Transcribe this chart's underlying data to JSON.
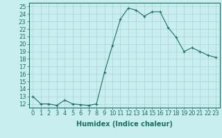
{
  "x": [
    0,
    1,
    2,
    3,
    4,
    5,
    6,
    7,
    8,
    9,
    10,
    11,
    12,
    13,
    14,
    15,
    16,
    17,
    18,
    19,
    20,
    21,
    22,
    23
  ],
  "y": [
    13.0,
    12.0,
    12.0,
    11.8,
    12.5,
    12.0,
    11.9,
    11.8,
    12.0,
    16.2,
    19.8,
    23.3,
    24.8,
    24.5,
    23.7,
    24.3,
    24.3,
    22.2,
    20.9,
    19.0,
    19.5,
    19.0,
    18.5,
    18.2
  ],
  "line_color": "#1a7060",
  "marker": "+",
  "marker_size": 3,
  "background_color": "#c8eef0",
  "grid_color": "#aad4d8",
  "tick_color": "#1a7060",
  "xlabel": "Humidex (Indice chaleur)",
  "xlim": [
    -0.5,
    23.5
  ],
  "ylim": [
    11.5,
    25.5
  ],
  "yticks": [
    12,
    13,
    14,
    15,
    16,
    17,
    18,
    19,
    20,
    21,
    22,
    23,
    24,
    25
  ],
  "xticks": [
    0,
    1,
    2,
    3,
    4,
    5,
    6,
    7,
    8,
    9,
    10,
    11,
    12,
    13,
    14,
    15,
    16,
    17,
    18,
    19,
    20,
    21,
    22,
    23
  ],
  "font_size": 6,
  "xlabel_fontsize": 7
}
